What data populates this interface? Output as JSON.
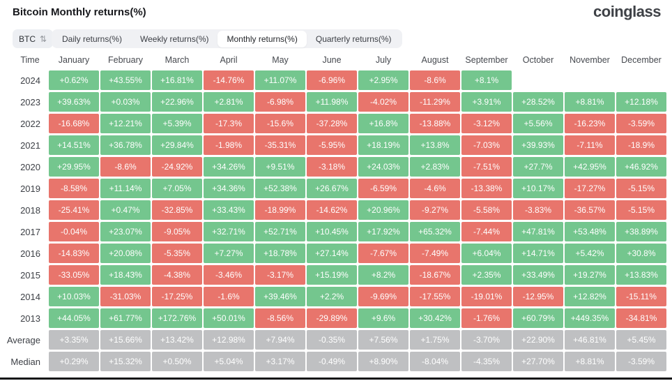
{
  "page": {
    "title": "Bitcoin Monthly returns(%)",
    "brand": "coinglass"
  },
  "controls": {
    "symbol_select": {
      "value": "BTC",
      "icon": "sort-arrows-icon"
    },
    "tabs": [
      {
        "label": "Daily returns(%)",
        "active": false
      },
      {
        "label": "Weekly returns(%)",
        "active": false
      },
      {
        "label": "Monthly returns(%)",
        "active": true
      },
      {
        "label": "Quarterly returns(%)",
        "active": false
      }
    ]
  },
  "colors": {
    "positive": "#74c68e",
    "negative": "#e8756c",
    "neutral": "#bfc0c2"
  },
  "chart_data": {
    "type": "table",
    "title": "Bitcoin Monthly returns(%)",
    "columns": [
      "Time",
      "January",
      "February",
      "March",
      "April",
      "May",
      "June",
      "July",
      "August",
      "September",
      "October",
      "November",
      "December"
    ],
    "rows": [
      {
        "label": "2024",
        "summary": false,
        "values": [
          "+0.62%",
          "+43.55%",
          "+16.81%",
          "-14.76%",
          "+11.07%",
          "-6.96%",
          "+2.95%",
          "-8.6%",
          "+8.1%",
          "",
          "",
          ""
        ]
      },
      {
        "label": "2023",
        "summary": false,
        "values": [
          "+39.63%",
          "+0.03%",
          "+22.96%",
          "+2.81%",
          "-6.98%",
          "+11.98%",
          "-4.02%",
          "-11.29%",
          "+3.91%",
          "+28.52%",
          "+8.81%",
          "+12.18%"
        ]
      },
      {
        "label": "2022",
        "summary": false,
        "values": [
          "-16.68%",
          "+12.21%",
          "+5.39%",
          "-17.3%",
          "-15.6%",
          "-37.28%",
          "+16.8%",
          "-13.88%",
          "-3.12%",
          "+5.56%",
          "-16.23%",
          "-3.59%"
        ]
      },
      {
        "label": "2021",
        "summary": false,
        "values": [
          "+14.51%",
          "+36.78%",
          "+29.84%",
          "-1.98%",
          "-35.31%",
          "-5.95%",
          "+18.19%",
          "+13.8%",
          "-7.03%",
          "+39.93%",
          "-7.11%",
          "-18.9%"
        ]
      },
      {
        "label": "2020",
        "summary": false,
        "values": [
          "+29.95%",
          "-8.6%",
          "-24.92%",
          "+34.26%",
          "+9.51%",
          "-3.18%",
          "+24.03%",
          "+2.83%",
          "-7.51%",
          "+27.7%",
          "+42.95%",
          "+46.92%"
        ]
      },
      {
        "label": "2019",
        "summary": false,
        "values": [
          "-8.58%",
          "+11.14%",
          "+7.05%",
          "+34.36%",
          "+52.38%",
          "+26.67%",
          "-6.59%",
          "-4.6%",
          "-13.38%",
          "+10.17%",
          "-17.27%",
          "-5.15%"
        ]
      },
      {
        "label": "2018",
        "summary": false,
        "values": [
          "-25.41%",
          "+0.47%",
          "-32.85%",
          "+33.43%",
          "-18.99%",
          "-14.62%",
          "+20.96%",
          "-9.27%",
          "-5.58%",
          "-3.83%",
          "-36.57%",
          "-5.15%"
        ]
      },
      {
        "label": "2017",
        "summary": false,
        "values": [
          "-0.04%",
          "+23.07%",
          "-9.05%",
          "+32.71%",
          "+52.71%",
          "+10.45%",
          "+17.92%",
          "+65.32%",
          "-7.44%",
          "+47.81%",
          "+53.48%",
          "+38.89%"
        ]
      },
      {
        "label": "2016",
        "summary": false,
        "values": [
          "-14.83%",
          "+20.08%",
          "-5.35%",
          "+7.27%",
          "+18.78%",
          "+27.14%",
          "-7.67%",
          "-7.49%",
          "+6.04%",
          "+14.71%",
          "+5.42%",
          "+30.8%"
        ]
      },
      {
        "label": "2015",
        "summary": false,
        "values": [
          "-33.05%",
          "+18.43%",
          "-4.38%",
          "-3.46%",
          "-3.17%",
          "+15.19%",
          "+8.2%",
          "-18.67%",
          "+2.35%",
          "+33.49%",
          "+19.27%",
          "+13.83%"
        ]
      },
      {
        "label": "2014",
        "summary": false,
        "values": [
          "+10.03%",
          "-31.03%",
          "-17.25%",
          "-1.6%",
          "+39.46%",
          "+2.2%",
          "-9.69%",
          "-17.55%",
          "-19.01%",
          "-12.95%",
          "+12.82%",
          "-15.11%"
        ]
      },
      {
        "label": "2013",
        "summary": false,
        "values": [
          "+44.05%",
          "+61.77%",
          "+172.76%",
          "+50.01%",
          "-8.56%",
          "-29.89%",
          "+9.6%",
          "+30.42%",
          "-1.76%",
          "+60.79%",
          "+449.35%",
          "-34.81%"
        ]
      },
      {
        "label": "Average",
        "summary": true,
        "values": [
          "+3.35%",
          "+15.66%",
          "+13.42%",
          "+12.98%",
          "+7.94%",
          "-0.35%",
          "+7.56%",
          "+1.75%",
          "-3.70%",
          "+22.90%",
          "+46.81%",
          "+5.45%"
        ]
      },
      {
        "label": "Median",
        "summary": true,
        "values": [
          "+0.29%",
          "+15.32%",
          "+0.50%",
          "+5.04%",
          "+3.17%",
          "-0.49%",
          "+8.90%",
          "-8.04%",
          "-4.35%",
          "+27.70%",
          "+8.81%",
          "-3.59%"
        ]
      }
    ]
  }
}
